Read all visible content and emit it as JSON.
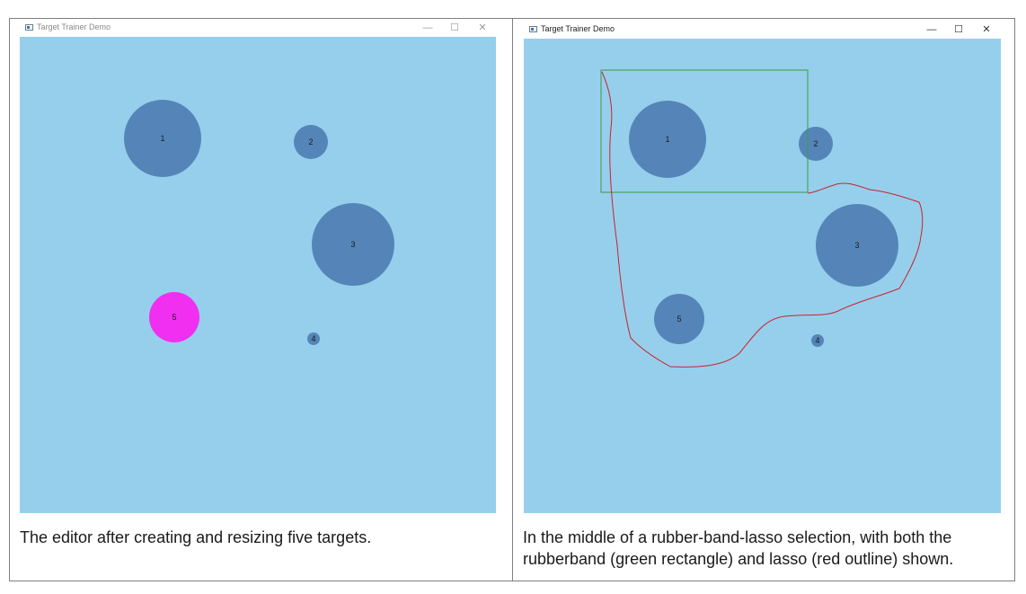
{
  "left_panel": {
    "window": {
      "title": "Target Trainer Demo",
      "controls": {
        "minimize": "—",
        "maximize": "☐",
        "close": "✕"
      },
      "canvas_color": "#96cfec"
    },
    "targets": [
      {
        "label": "1",
        "color": "#5585b8"
      },
      {
        "label": "2",
        "color": "#5585b8"
      },
      {
        "label": "3",
        "color": "#5585b8"
      },
      {
        "label": "4",
        "color": "#5585b8"
      },
      {
        "label": "5",
        "color": "#f02ff0",
        "selected": true
      }
    ],
    "caption": "The editor after creating and resizing five targets."
  },
  "right_panel": {
    "window": {
      "title": "Target Trainer Demo",
      "controls": {
        "minimize": "—",
        "maximize": "☐",
        "close": "✕"
      },
      "canvas_color": "#96cfec"
    },
    "targets": [
      {
        "label": "1",
        "color": "#5585b8"
      },
      {
        "label": "2",
        "color": "#5585b8"
      },
      {
        "label": "3",
        "color": "#5585b8"
      },
      {
        "label": "4",
        "color": "#5585b8"
      },
      {
        "label": "5",
        "color": "#5585b8"
      }
    ],
    "rubberband_color": "#3c9a46",
    "lasso_color": "#c8232c",
    "caption_line1": "In the middle of a rubber-band-lasso selection, with both the",
    "caption_line2": "rubberband (green rectangle) and lasso (red outline) shown."
  }
}
